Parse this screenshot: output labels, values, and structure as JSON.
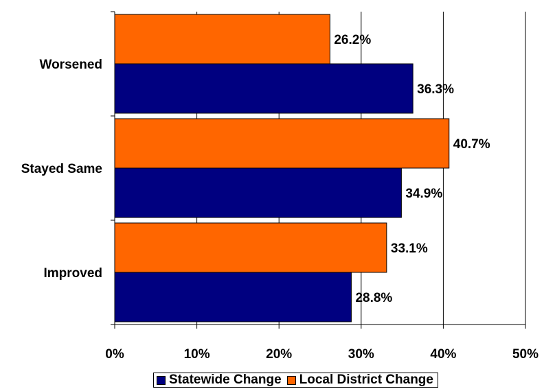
{
  "chart_data": {
    "type": "bar",
    "orientation": "horizontal",
    "categories": [
      "Worsened",
      "Stayed Same",
      "Improved"
    ],
    "series": [
      {
        "name": "Local District Change",
        "color": "#FF6600",
        "values": [
          26.2,
          40.7,
          33.1
        ],
        "labels": [
          "26.2%",
          "40.7%",
          "33.1%"
        ]
      },
      {
        "name": "Statewide Change",
        "color": "#000080",
        "values": [
          36.3,
          34.9,
          28.8
        ],
        "labels": [
          "36.3%",
          "34.9%",
          "28.8%"
        ]
      }
    ],
    "xlim": [
      0,
      50
    ],
    "xticks": [
      0,
      10,
      20,
      30,
      40,
      50
    ],
    "xtick_labels": [
      "0%",
      "10%",
      "20%",
      "30%",
      "40%",
      "50%"
    ],
    "grid": "vertical",
    "legend": {
      "placement": "bottom",
      "entries": [
        {
          "label": "Statewide Change",
          "color": "#000080"
        },
        {
          "label": "Local District Change",
          "color": "#FF6600"
        }
      ]
    }
  }
}
